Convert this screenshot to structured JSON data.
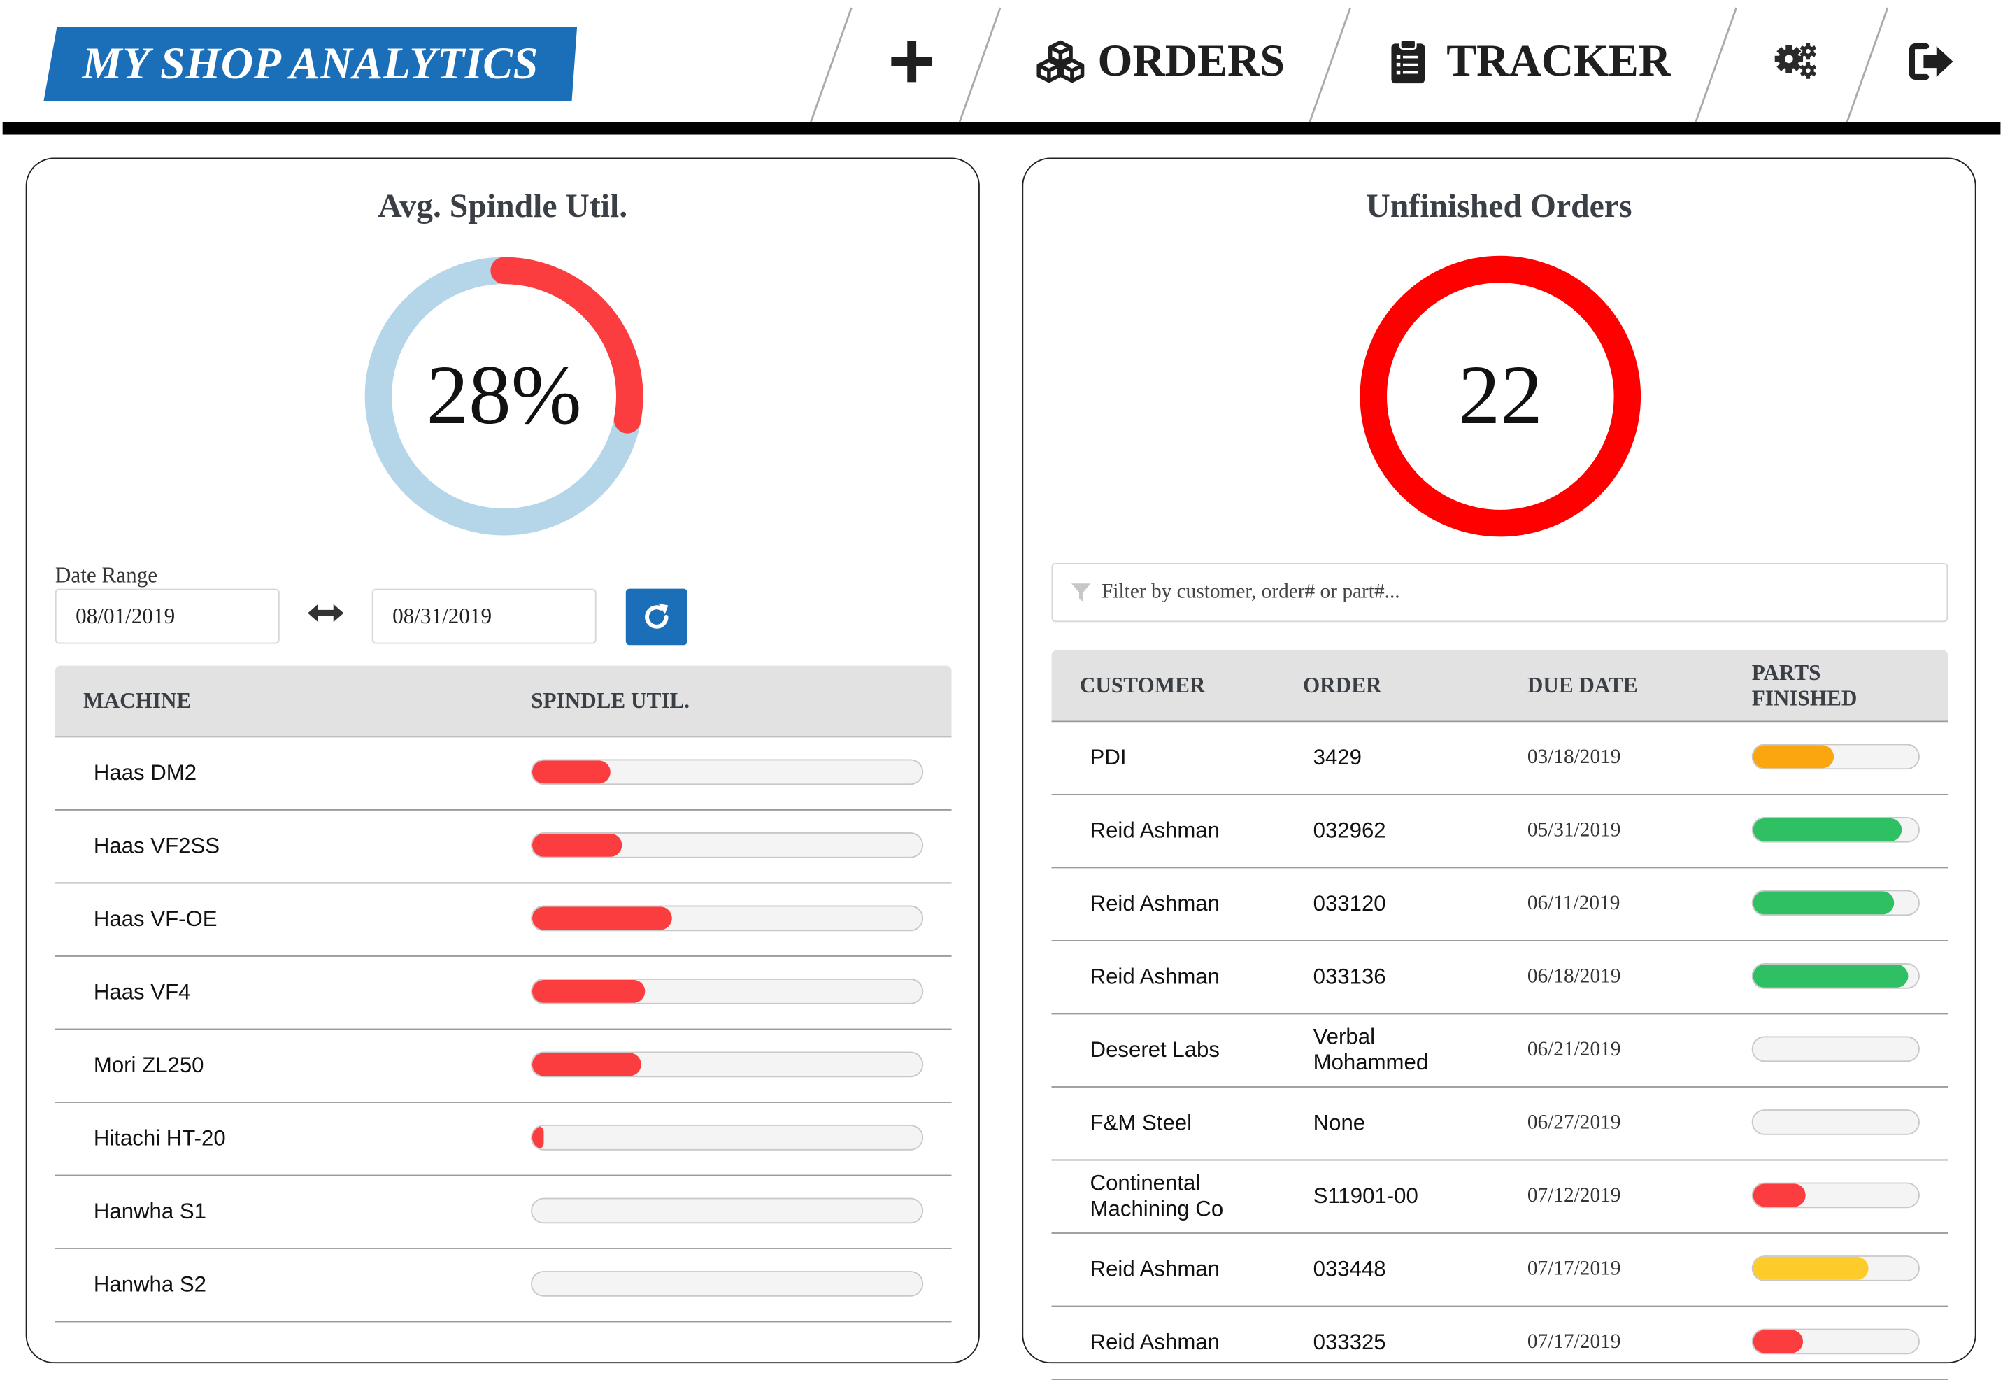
{
  "header": {
    "logo": "MY SHOP ANALYTICS",
    "nav": {
      "add_icon": "plus-icon",
      "orders_label": "ORDERS",
      "orders_icon": "cubes-icon",
      "tracker_label": "TRACKER",
      "tracker_icon": "clipboard-icon",
      "settings_icon": "gears-icon",
      "logout_icon": "sign-out-icon"
    },
    "colors": {
      "logo_bg": "#1a6fb8",
      "rule": "#000000"
    }
  },
  "spindle_card": {
    "title": "Avg. Spindle Util.",
    "gauge": {
      "value_label": "28%",
      "fraction": 0.28,
      "track_color": "#b5d5e9",
      "fill_color": "#fc3d3f"
    },
    "date_range": {
      "label": "Date Range",
      "start": "08/01/2019",
      "end": "08/31/2019",
      "arrow_icon": "arrows-h-icon",
      "refresh_icon": "refresh-icon"
    },
    "table": {
      "columns": [
        "MACHINE",
        "SPINDLE UTIL."
      ],
      "rows": [
        {
          "machine": "Haas DM2",
          "util": 0.2
        },
        {
          "machine": "Haas VF2SS",
          "util": 0.23
        },
        {
          "machine": "Haas VF-OE",
          "util": 0.36
        },
        {
          "machine": "Haas VF4",
          "util": 0.29
        },
        {
          "machine": "Mori ZL250",
          "util": 0.28
        },
        {
          "machine": "Hitachi HT-20",
          "util": 0.03
        },
        {
          "machine": "Hanwha S1",
          "util": 0
        },
        {
          "machine": "Hanwha S2",
          "util": 0
        }
      ]
    }
  },
  "orders_card": {
    "title": "Unfinished Orders",
    "count_label": "22",
    "ring_color": "#ff0000",
    "filter": {
      "placeholder": "Filter by customer, order# or part#...",
      "value": "",
      "icon": "filter-icon"
    },
    "table": {
      "columns": [
        "CUSTOMER",
        "ORDER",
        "DUE DATE",
        "PARTS FINISHED"
      ],
      "rows": [
        {
          "customer": "PDI",
          "order": "3429",
          "due": "03/18/2019",
          "finished": 0.49,
          "color": "#fba60f"
        },
        {
          "customer": "Reid Ashman",
          "order": "032962",
          "due": "05/31/2019",
          "finished": 0.9,
          "color": "#2ec063"
        },
        {
          "customer": "Reid Ashman",
          "order": "033120",
          "due": "06/11/2019",
          "finished": 0.85,
          "color": "#2ec063"
        },
        {
          "customer": "Reid Ashman",
          "order": "033136",
          "due": "06/18/2019",
          "finished": 0.94,
          "color": "#2ec063"
        },
        {
          "customer": "Deseret Labs",
          "order": "Verbal Mohammed",
          "due": "06/21/2019",
          "finished": 0,
          "color": "#2ec063"
        },
        {
          "customer": "F&M Steel",
          "order": "None",
          "due": "06/27/2019",
          "finished": 0,
          "color": "#2ec063"
        },
        {
          "customer": "Continental Machining Co",
          "order": "S11901-00",
          "due": "07/12/2019",
          "finished": 0.32,
          "color": "#fc3d3f"
        },
        {
          "customer": "Reid Ashman",
          "order": "033448",
          "due": "07/17/2019",
          "finished": 0.7,
          "color": "#fdcc2a"
        },
        {
          "customer": "Reid Ashman",
          "order": "033325",
          "due": "07/17/2019",
          "finished": 0.3,
          "color": "#fc3d3f"
        }
      ]
    }
  }
}
